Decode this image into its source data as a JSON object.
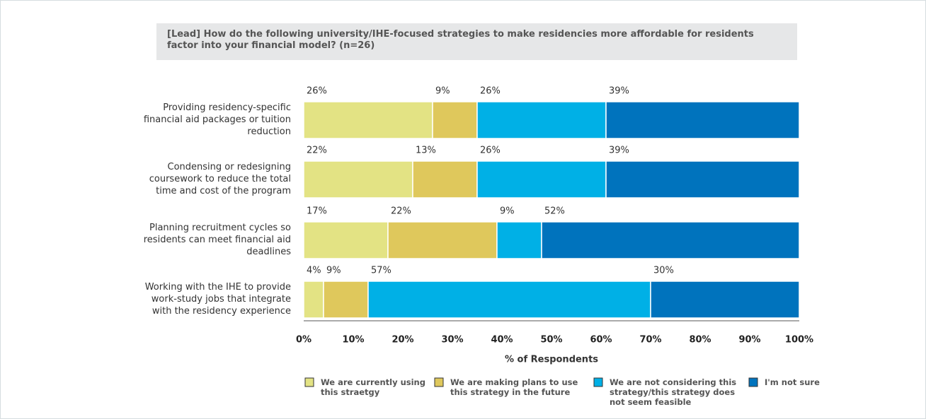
{
  "chart_data": {
    "type": "stacked_bar_horizontal",
    "title": "[Lead] How do the following university/IHE-focused strategies to make residencies more affordable for residents factor into your financial model? (n=26)",
    "categories": [
      "Providing residency-specific financial aid packages or tuition reduction",
      "Condensing or redesigning coursework to reduce the total time and cost of the program",
      "Planning recruitment cycles so residents can meet financial aid deadlines",
      "Working with the IHE to provide work-study jobs that integrate with the residency experience"
    ],
    "series": [
      {
        "name": "We are currently using this straetgy",
        "color": "#e3e384",
        "values": [
          26,
          22,
          17,
          4
        ],
        "value_labels": [
          "26%",
          "22%",
          "17%",
          "4%"
        ]
      },
      {
        "name": "We are making plans to use this strategy in the future",
        "color": "#dfc85c",
        "values": [
          9,
          13,
          22,
          9
        ],
        "value_labels": [
          "9%",
          "13%",
          "22%",
          "9%"
        ]
      },
      {
        "name": "We are not considering this strategy/this strategy does not seem feasible",
        "color": "#00b0e6",
        "values": [
          26,
          26,
          9,
          57
        ],
        "value_labels": [
          "26%",
          "26%",
          "9%",
          "57%"
        ]
      },
      {
        "name": "I'm not sure",
        "color": "#0073bd",
        "values": [
          39,
          39,
          52,
          30
        ],
        "value_labels": [
          "39%",
          "39%",
          "52%",
          "30%"
        ]
      }
    ],
    "xlabel": "% of Respondents",
    "xlim": [
      0,
      100
    ],
    "xticks": [
      {
        "value": 0,
        "label": "0%"
      },
      {
        "value": 10,
        "label": "10%"
      },
      {
        "value": 20,
        "label": "20%"
      },
      {
        "value": 30,
        "label": "30%"
      },
      {
        "value": 40,
        "label": "40%"
      },
      {
        "value": 50,
        "label": "50%"
      },
      {
        "value": 60,
        "label": "60%"
      },
      {
        "value": 70,
        "label": "70%"
      },
      {
        "value": 80,
        "label": "80%"
      },
      {
        "value": 90,
        "label": "90%"
      },
      {
        "value": 100,
        "label": "100%"
      }
    ],
    "legend": "bottom"
  }
}
